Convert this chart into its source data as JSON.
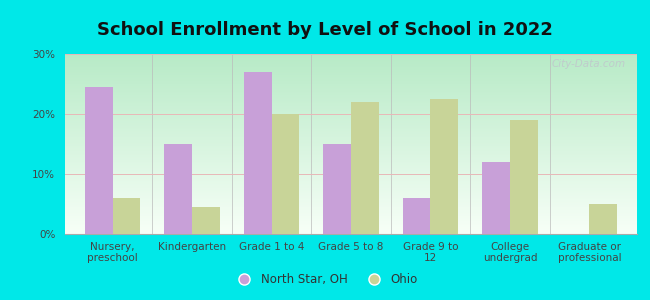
{
  "title": "School Enrollment by Level of School in 2022",
  "categories": [
    "Nursery,\npreschool",
    "Kindergarten",
    "Grade 1 to 4",
    "Grade 5 to 8",
    "Grade 9 to\n12",
    "College\nundergrad",
    "Graduate or\nprofessional"
  ],
  "north_star": [
    24.5,
    15.0,
    27.0,
    15.0,
    6.0,
    12.0,
    0.0
  ],
  "ohio": [
    6.0,
    4.5,
    20.0,
    22.0,
    22.5,
    19.0,
    5.0
  ],
  "north_star_color": "#c8a0d8",
  "ohio_color": "#c8d498",
  "background_outer": "#00e8e8",
  "background_inner_top": "#b8e8c8",
  "background_inner_bottom": "#f0faf0",
  "ylim": [
    0,
    30
  ],
  "yticks": [
    0,
    10,
    20,
    30
  ],
  "ytick_labels": [
    "0%",
    "10%",
    "20%",
    "30%"
  ],
  "legend_label_ns": "North Star, OH",
  "legend_label_ohio": "Ohio",
  "bar_width": 0.35,
  "title_fontsize": 13,
  "tick_fontsize": 7.5,
  "legend_fontsize": 8.5,
  "watermark": "City-Data.com"
}
